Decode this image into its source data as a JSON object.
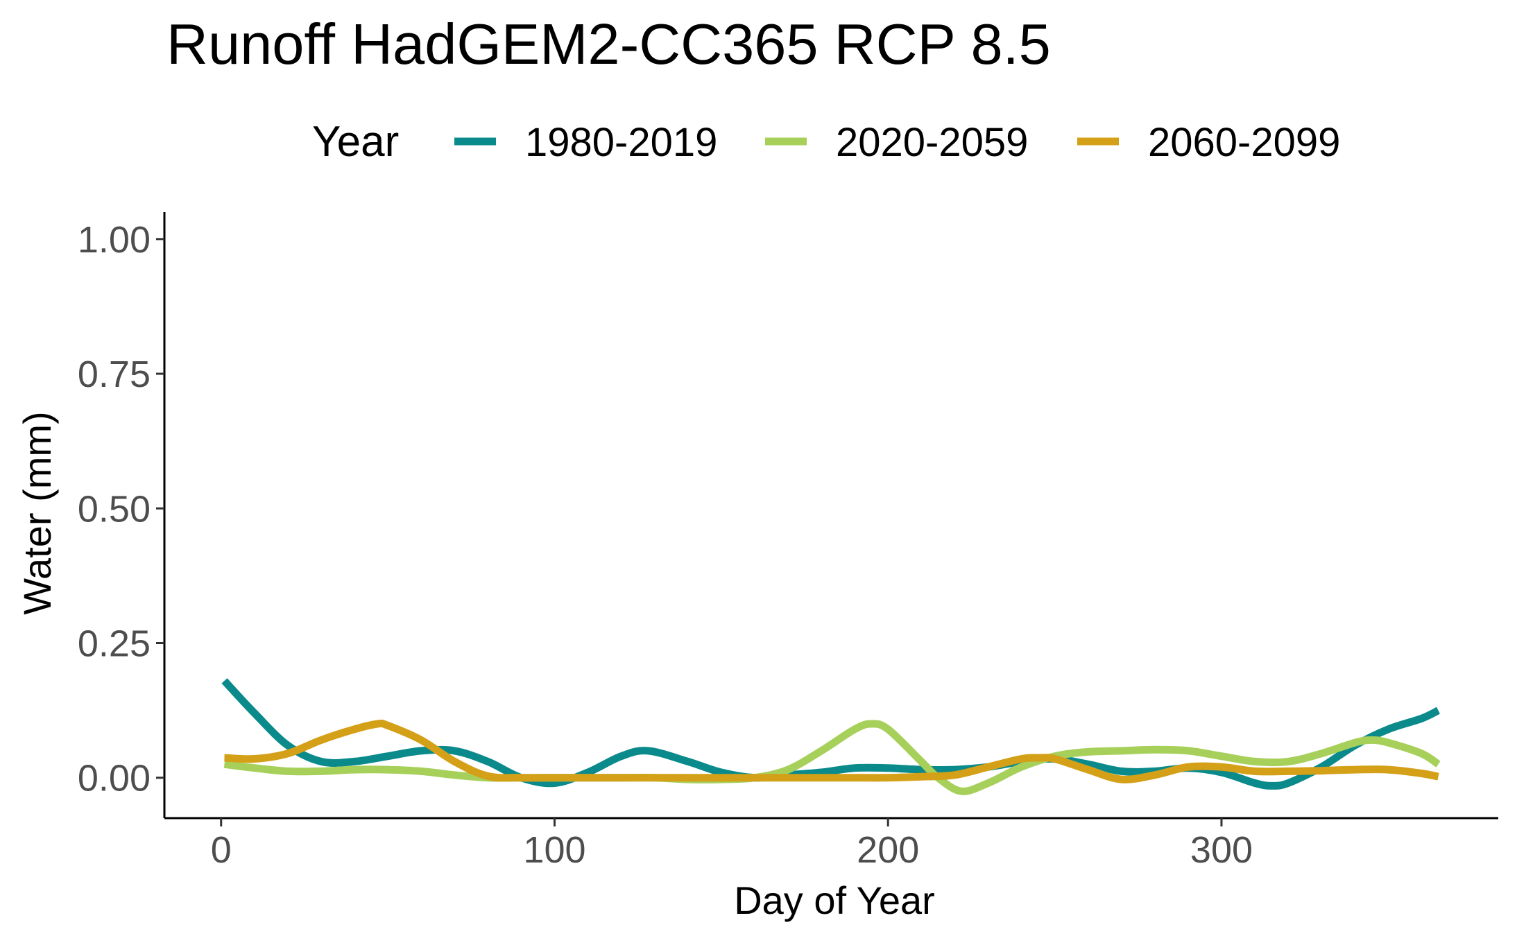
{
  "chart_data": {
    "type": "line",
    "title": "Runoff HadGEM2-CC365 RCP 8.5",
    "xlabel": "Day of Year",
    "ylabel": "Water (mm)",
    "xlim": [
      -17,
      383
    ],
    "ylim": [
      -0.075,
      1.05
    ],
    "xticks": [
      0,
      100,
      200,
      300
    ],
    "xtick_labels": [
      "0",
      "100",
      "200",
      "300"
    ],
    "yticks": [
      0,
      0.25,
      0.5,
      0.75,
      1.0
    ],
    "ytick_labels": [
      "0.00",
      "0.25",
      "0.50",
      "0.75",
      "1.00"
    ],
    "grid": false,
    "legend": {
      "title": "Year",
      "position": "top"
    },
    "series": [
      {
        "name": "1980-2019",
        "color": "#0b8a8b",
        "x": [
          1,
          10,
          20,
          30,
          40,
          50,
          60,
          70,
          80,
          90,
          100,
          110,
          120,
          128,
          140,
          150,
          160,
          170,
          180,
          190,
          200,
          210,
          220,
          230,
          240,
          250,
          260,
          270,
          280,
          290,
          300,
          310,
          315,
          320,
          330,
          340,
          350,
          360,
          365
        ],
        "y": [
          0.18,
          0.12,
          0.06,
          0.03,
          0.03,
          0.04,
          0.05,
          0.05,
          0.03,
          0.0,
          -0.01,
          0.01,
          0.04,
          0.05,
          0.03,
          0.01,
          0.0,
          0.005,
          0.01,
          0.018,
          0.018,
          0.015,
          0.015,
          0.02,
          0.03,
          0.035,
          0.025,
          0.012,
          0.012,
          0.018,
          0.01,
          -0.01,
          -0.015,
          -0.01,
          0.02,
          0.06,
          0.09,
          0.11,
          0.125
        ]
      },
      {
        "name": "2020-2059",
        "color": "#a6d05a",
        "x": [
          1,
          10,
          20,
          30,
          40,
          50,
          60,
          70,
          80,
          90,
          100,
          110,
          120,
          130,
          140,
          150,
          160,
          170,
          180,
          190,
          195,
          200,
          210,
          215,
          222,
          230,
          240,
          250,
          260,
          270,
          280,
          290,
          300,
          310,
          320,
          330,
          340,
          345,
          350,
          360,
          365
        ],
        "y": [
          0.025,
          0.018,
          0.012,
          0.012,
          0.015,
          0.015,
          0.012,
          0.005,
          0.0,
          0.0,
          0.0,
          0.0,
          0.0,
          0.0,
          -0.003,
          -0.003,
          0.0,
          0.015,
          0.05,
          0.09,
          0.1,
          0.09,
          0.03,
          0.0,
          -0.025,
          -0.01,
          0.02,
          0.04,
          0.048,
          0.05,
          0.052,
          0.05,
          0.04,
          0.03,
          0.03,
          0.045,
          0.065,
          0.07,
          0.065,
          0.045,
          0.025
        ]
      },
      {
        "name": "2060-2099",
        "color": "#d4a017",
        "x": [
          1,
          10,
          20,
          30,
          40,
          47,
          50,
          60,
          70,
          80,
          90,
          100,
          110,
          120,
          130,
          140,
          150,
          160,
          170,
          180,
          190,
          200,
          210,
          220,
          230,
          240,
          245,
          250,
          260,
          270,
          280,
          290,
          300,
          310,
          320,
          330,
          340,
          350,
          360,
          365
        ],
        "y": [
          0.037,
          0.035,
          0.045,
          0.07,
          0.09,
          0.1,
          0.097,
          0.07,
          0.03,
          0.003,
          0.0,
          0.0,
          0.0,
          0.0,
          0.0,
          0.0,
          0.0,
          0.0,
          0.0,
          0.0,
          0.0,
          0.0,
          0.002,
          0.005,
          0.02,
          0.035,
          0.037,
          0.035,
          0.015,
          -0.003,
          0.005,
          0.02,
          0.02,
          0.012,
          0.012,
          0.013,
          0.015,
          0.015,
          0.008,
          0.002
        ]
      }
    ]
  }
}
